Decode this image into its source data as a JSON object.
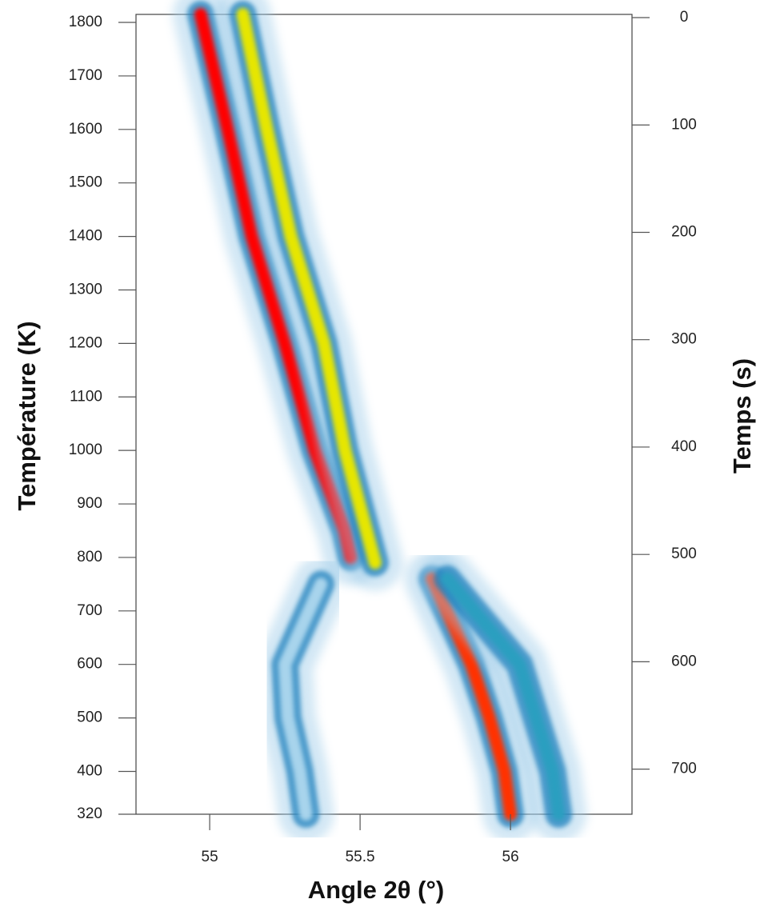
{
  "chart_data": {
    "type": "line",
    "xlabel": "Angle 2θ (°)",
    "ylabel": "Température (K)",
    "y2label": "Temps (s)",
    "xlim": [
      54.755,
      56.404
    ],
    "xticks": [
      55,
      55.5,
      56
    ],
    "ylim": [
      320,
      1815
    ],
    "yticks": [
      320,
      400,
      500,
      600,
      700,
      800,
      900,
      1000,
      1100,
      1200,
      1300,
      1400,
      1500,
      1600,
      1700,
      1800
    ],
    "y2lim": [
      742,
      -3
    ],
    "y2ticks": [
      0,
      100,
      200,
      300,
      400,
      500,
      600,
      700
    ],
    "series": [
      {
        "color": "#ff0000",
        "x": [
          54.97,
          55.06,
          55.14,
          55.25,
          55.35,
          55.45,
          55.47
        ],
        "values": [
          1815,
          1600,
          1400,
          1200,
          1000,
          850,
          800
        ]
      },
      {
        "color": "#e6e600",
        "x": [
          55.11,
          55.19,
          55.27,
          55.38,
          55.45,
          55.55
        ],
        "values": [
          1815,
          1600,
          1400,
          1200,
          1000,
          790
        ]
      },
      {
        "color": "#ff3000",
        "x": [
          55.74,
          55.87,
          55.93,
          55.98,
          56.0
        ],
        "values": [
          760,
          600,
          500,
          400,
          320
        ]
      },
      {
        "color": "#2a9fc0",
        "x": [
          55.79,
          56.03,
          56.14,
          56.16
        ],
        "values": [
          760,
          600,
          400,
          320
        ]
      },
      {
        "color": "#a8d4ec",
        "x": [
          55.37,
          55.25,
          55.26,
          55.3,
          55.32
        ],
        "values": [
          750,
          600,
          500,
          400,
          320
        ]
      }
    ]
  }
}
